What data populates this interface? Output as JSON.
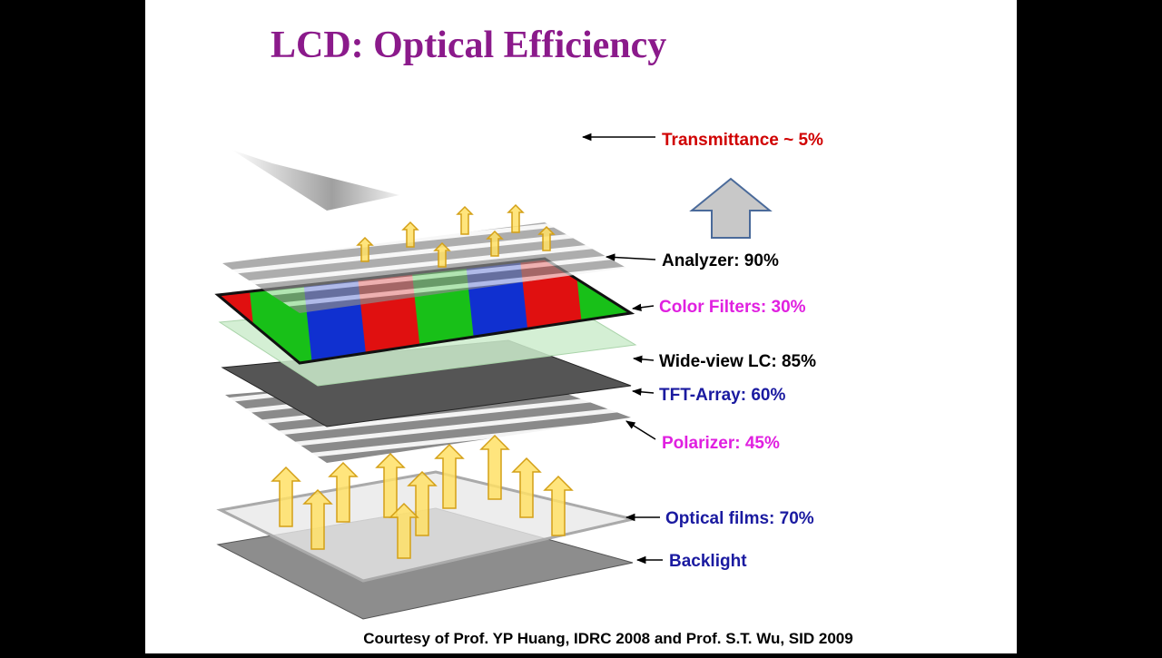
{
  "header": {
    "title": "LCD: Optical Efficiency"
  },
  "labels": [
    "Transmittance ~ 5%",
    "Analyzer: 90%",
    "Color Filters: 30%",
    "Wide-view LC: 85%",
    "TFT-Array: 60%",
    "Polarizer: 45%",
    "Optical films: 70%",
    "Backlight"
  ],
  "footer": {
    "credit": "Courtesy of Prof. YP Huang, IDRC 2008 and Prof. S.T. Wu, SID 2009"
  }
}
